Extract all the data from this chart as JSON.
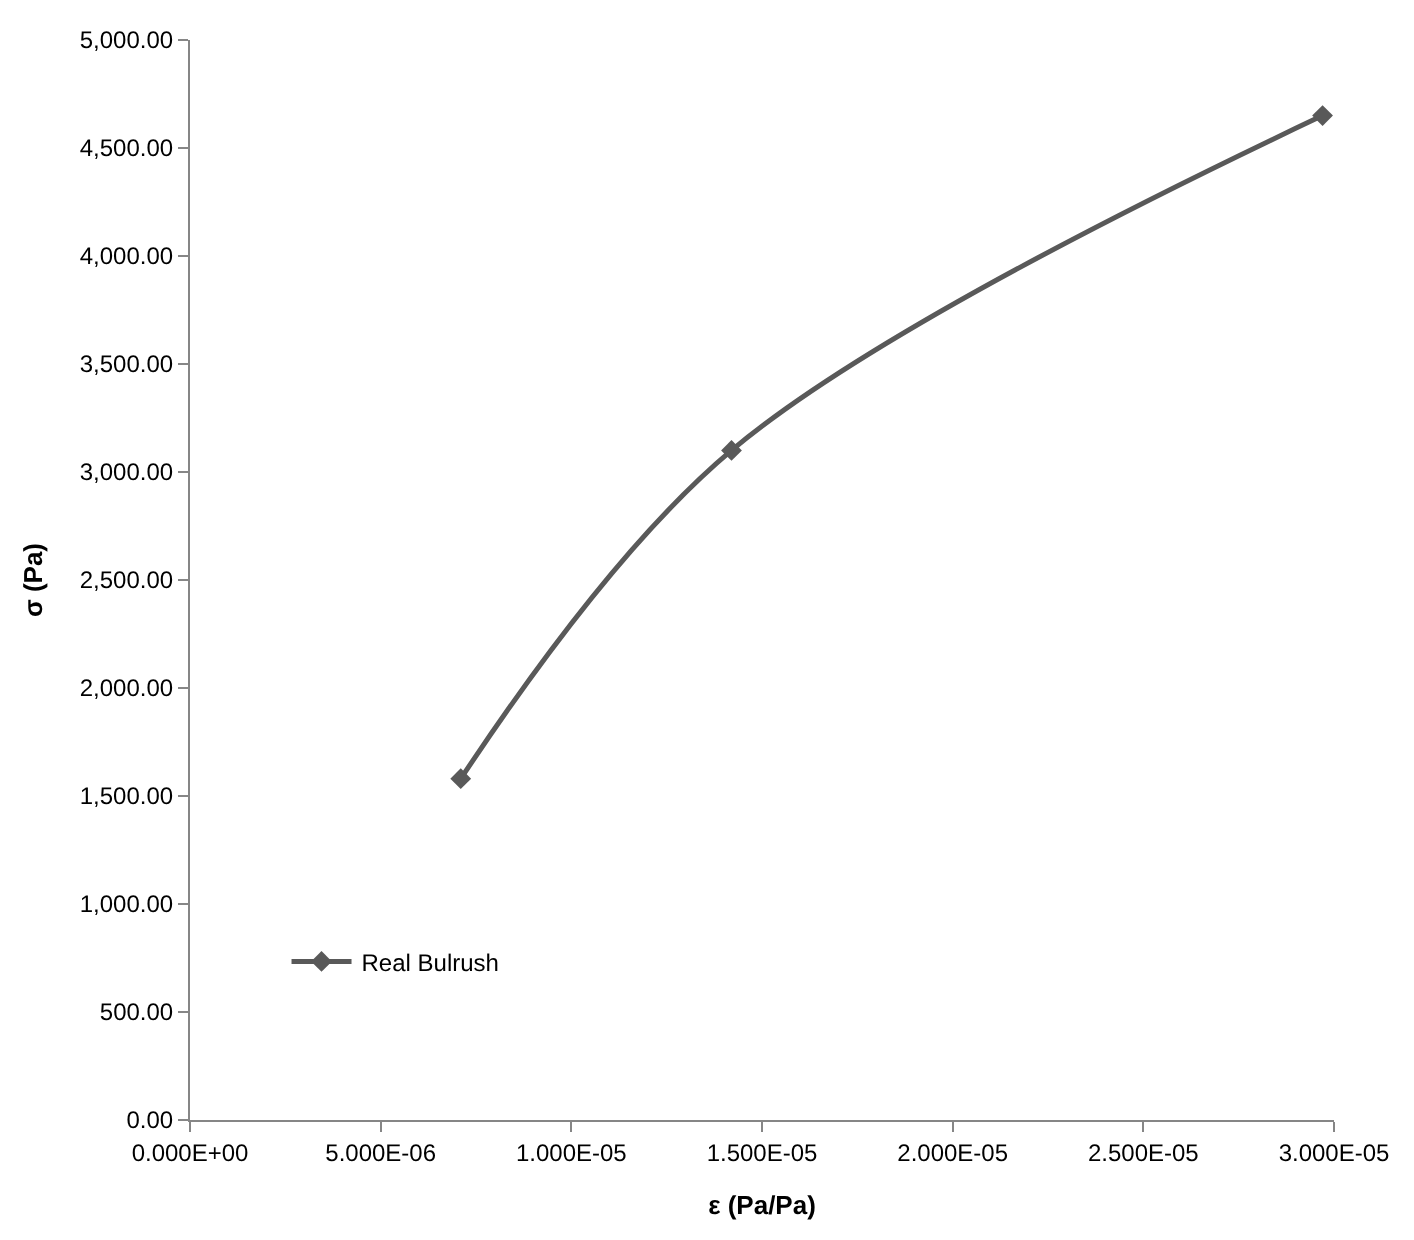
{
  "chart_data": {
    "type": "line",
    "xlabel": "ε (Pa/Pa)",
    "ylabel": "σ (Pa)",
    "x": [
      7.1e-06,
      1.42e-05,
      2.97e-05
    ],
    "series": [
      {
        "name": "Real Bulrush",
        "color": "#595959",
        "values": [
          1580,
          3100,
          4650
        ]
      }
    ],
    "xlim": [
      0,
      3e-05
    ],
    "xticks": [
      {
        "value": 0,
        "label": "0.000E+00"
      },
      {
        "value": 5e-06,
        "label": "5.000E-06"
      },
      {
        "value": 1e-05,
        "label": "1.000E-05"
      },
      {
        "value": 1.5e-05,
        "label": "1.500E-05"
      },
      {
        "value": 2e-05,
        "label": "2.000E-05"
      },
      {
        "value": 2.5e-05,
        "label": "2.500E-05"
      },
      {
        "value": 3e-05,
        "label": "3.000E-05"
      }
    ],
    "ylim": [
      0,
      5000
    ],
    "yticks": [
      {
        "value": 0,
        "label": "0.00"
      },
      {
        "value": 500,
        "label": "500.00"
      },
      {
        "value": 1000,
        "label": "1,000.00"
      },
      {
        "value": 1500,
        "label": "1,500.00"
      },
      {
        "value": 2000,
        "label": "2,000.00"
      },
      {
        "value": 2500,
        "label": "2,500.00"
      },
      {
        "value": 3000,
        "label": "3,000.00"
      },
      {
        "value": 3500,
        "label": "3,500.00"
      },
      {
        "value": 4000,
        "label": "4,000.00"
      },
      {
        "value": 4500,
        "label": "4,500.00"
      },
      {
        "value": 5000,
        "label": "5,000.00"
      }
    ],
    "legend": "bottom left",
    "marker": "diamond",
    "line_style": "solid"
  }
}
